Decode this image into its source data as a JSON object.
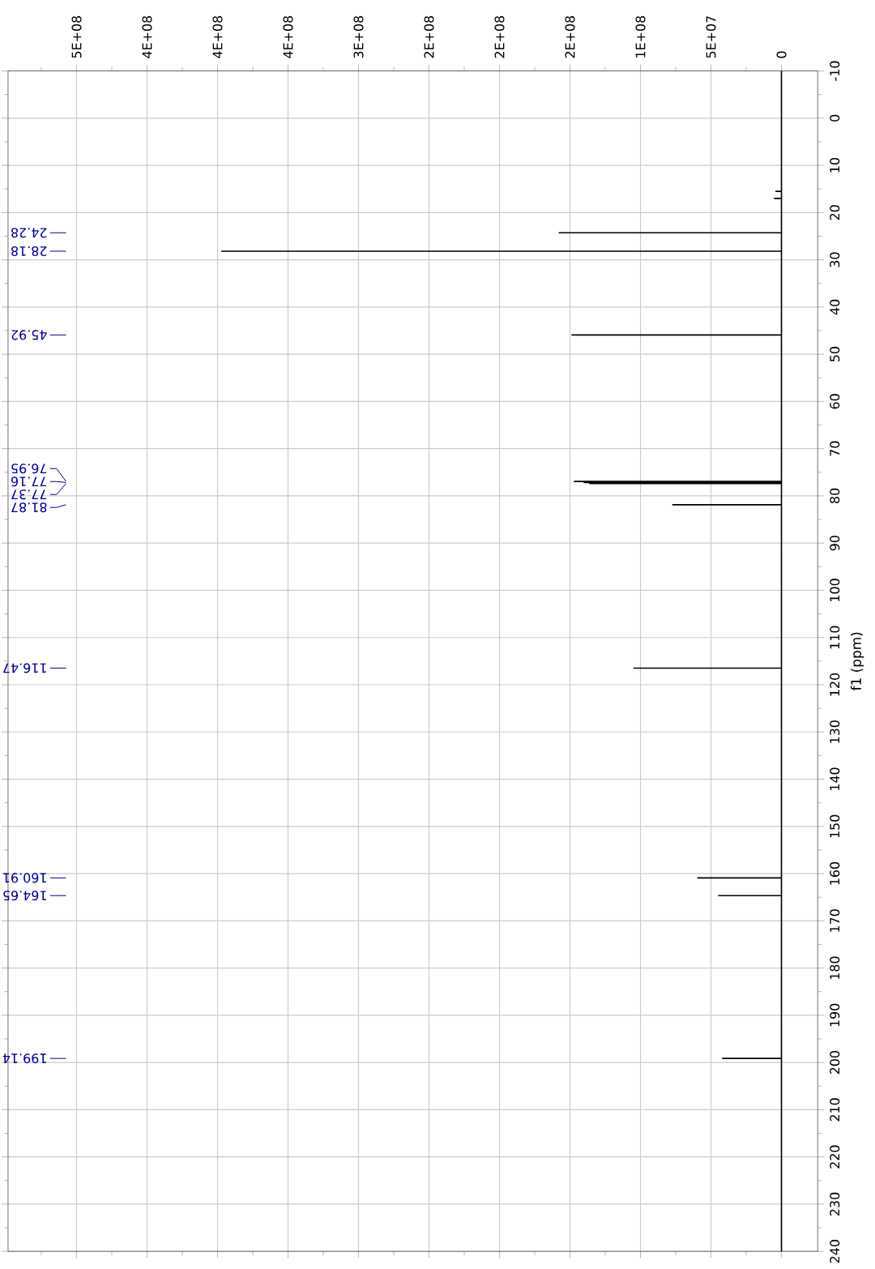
{
  "chart_data": {
    "type": "line",
    "ylabel": "f1 (ppm)",
    "series": [
      {
        "color": "#000000",
        "x": [
          0,
          0,
          4000000,
          0,
          0,
          5000000,
          0,
          0,
          157700000,
          0,
          0,
          397000000,
          0,
          0,
          148600000,
          0,
          0,
          146900000,
          0,
          0,
          140000000,
          0,
          0,
          136000000,
          0,
          0,
          77100000,
          0,
          0,
          104600000,
          0,
          0,
          59400000,
          0,
          0,
          44600000,
          0,
          0,
          41700000,
          0,
          0
        ],
        "values": [
          -10,
          15.5,
          15.5,
          15.5,
          17,
          17,
          17,
          24.28,
          24.28,
          24.28,
          28.18,
          28.18,
          28.18,
          45.92,
          45.92,
          45.92,
          76.95,
          76.95,
          76.95,
          77.16,
          77.16,
          77.16,
          77.37,
          77.37,
          77.37,
          81.87,
          81.87,
          81.87,
          116.47,
          116.47,
          116.47,
          160.91,
          160.91,
          160.91,
          164.65,
          164.65,
          164.65,
          199.14,
          199.14,
          199.14,
          240
        ]
      }
    ],
    "ylim": [
      240,
      -10
    ],
    "yticks": [
      -10,
      {
        "value": -5,
        "label": null
      },
      0,
      {
        "value": 5,
        "label": null
      },
      10,
      {
        "value": 15,
        "label": null
      },
      20,
      {
        "value": 25,
        "label": null
      },
      30,
      {
        "value": 35,
        "label": null
      },
      40,
      {
        "value": 45,
        "label": null
      },
      50,
      {
        "value": 55,
        "label": null
      },
      60,
      {
        "value": 65,
        "label": null
      },
      70,
      {
        "value": 75,
        "label": null
      },
      80,
      {
        "value": 85,
        "label": null
      },
      90,
      {
        "value": 95,
        "label": null
      },
      100,
      {
        "value": 105,
        "label": null
      },
      110,
      {
        "value": 115,
        "label": null
      },
      120,
      {
        "value": 125,
        "label": null
      },
      130,
      {
        "value": 135,
        "label": null
      },
      140,
      {
        "value": 145,
        "label": null
      },
      150,
      {
        "value": 155,
        "label": null
      },
      160,
      {
        "value": 165,
        "label": null
      },
      170,
      {
        "value": 175,
        "label": null
      },
      180,
      {
        "value": 185,
        "label": null
      },
      190,
      {
        "value": 195,
        "label": null
      },
      200,
      {
        "value": 205,
        "label": null
      },
      210,
      {
        "value": 215,
        "label": null
      },
      220,
      {
        "value": 225,
        "label": null
      },
      230,
      {
        "value": 235,
        "label": null
      },
      240
    ],
    "xlim": [
      548600000,
      -25700000
    ],
    "xticks": [
      0,
      {
        "value": 25000000,
        "label": null
      },
      {
        "value": 50000000,
        "label": "5E+07"
      },
      {
        "value": 75000000,
        "label": null
      },
      {
        "value": 100000000,
        "label": "1E+08"
      },
      {
        "value": 125000000,
        "label": null
      },
      {
        "value": 150000000,
        "label": "2E+08"
      },
      {
        "value": 175000000,
        "label": null
      },
      {
        "value": 200000000,
        "label": "2E+08"
      },
      {
        "value": 225000000,
        "label": null
      },
      {
        "value": 250000000,
        "label": "2E+08"
      },
      {
        "value": 275000000,
        "label": null
      },
      {
        "value": 300000000,
        "label": "3E+08"
      },
      {
        "value": 325000000,
        "label": null
      },
      {
        "value": 350000000,
        "label": "4E+08"
      },
      {
        "value": 375000000,
        "label": null
      },
      {
        "value": 400000000,
        "label": "4E+08"
      },
      {
        "value": 425000000,
        "label": null
      },
      {
        "value": 450000000,
        "label": "4E+08"
      },
      {
        "value": 475000000,
        "label": null
      },
      {
        "value": 500000000,
        "label": "5E+08"
      },
      {
        "value": 525000000,
        "label": null
      }
    ],
    "grid": true,
    "annotations": [
      "24.28",
      "28.18",
      "45.92",
      "76.95",
      "77.16",
      "77.37",
      "81.87",
      "116.47",
      "160.91",
      "164.65",
      "199.14"
    ]
  }
}
